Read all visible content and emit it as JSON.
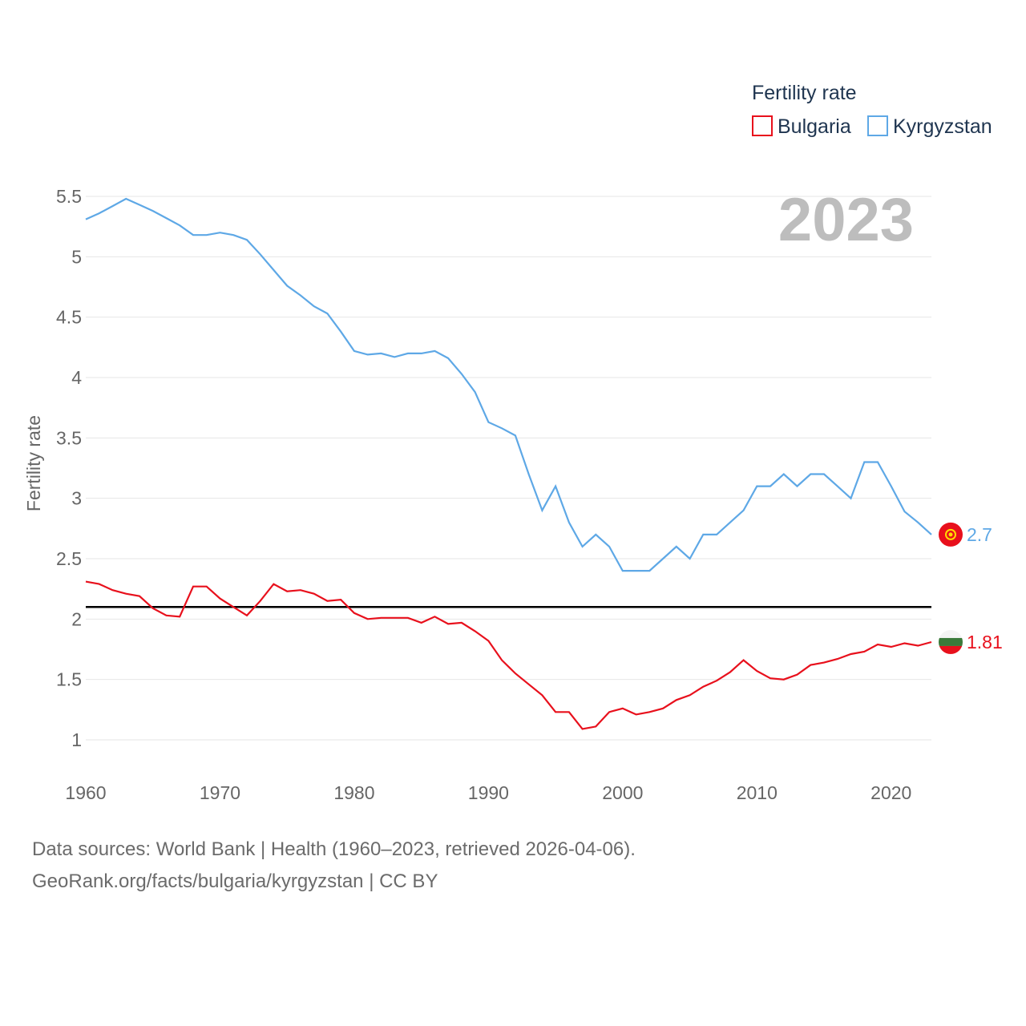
{
  "legend": {
    "title": "Fertility rate",
    "items": [
      {
        "label": "Bulgaria",
        "color": "#e8101c"
      },
      {
        "label": "Kyrgyzstan",
        "color": "#5ea8e6"
      }
    ]
  },
  "watermark_year": "2023",
  "reference_line_value": 2.1,
  "end_labels": {
    "kyrgyzstan": "2.7",
    "bulgaria": "1.81"
  },
  "footer": {
    "line1": "Data sources: World Bank | Health (1960–2023, retrieved 2026-04-06).",
    "line2": "GeoRank.org/facts/bulgaria/kyrgyzstan | CC BY"
  },
  "chart_data": {
    "type": "line",
    "title": "Fertility rate",
    "xlabel": "",
    "ylabel": "Fertility rate",
    "xlim": [
      1960,
      2023
    ],
    "ylim": [
      0.75,
      5.6
    ],
    "x_ticks": [
      "1960",
      "1970",
      "1980",
      "1990",
      "2000",
      "2010",
      "2020"
    ],
    "y_ticks": [
      "1",
      "1.5",
      "2",
      "2.5",
      "3",
      "3.5",
      "4",
      "4.5",
      "5",
      "5.5"
    ],
    "x": [
      1960,
      1961,
      1962,
      1963,
      1964,
      1965,
      1966,
      1967,
      1968,
      1969,
      1970,
      1971,
      1972,
      1973,
      1974,
      1975,
      1976,
      1977,
      1978,
      1979,
      1980,
      1981,
      1982,
      1983,
      1984,
      1985,
      1986,
      1987,
      1988,
      1989,
      1990,
      1991,
      1992,
      1993,
      1994,
      1995,
      1996,
      1997,
      1998,
      1999,
      2000,
      2001,
      2002,
      2003,
      2004,
      2005,
      2006,
      2007,
      2008,
      2009,
      2010,
      2011,
      2012,
      2013,
      2014,
      2015,
      2016,
      2017,
      2018,
      2019,
      2020,
      2021,
      2022,
      2023
    ],
    "series": [
      {
        "name": "Bulgaria",
        "color": "#e8101c",
        "values": [
          2.31,
          2.29,
          2.24,
          2.21,
          2.19,
          2.09,
          2.03,
          2.02,
          2.27,
          2.27,
          2.17,
          2.1,
          2.03,
          2.15,
          2.29,
          2.23,
          2.24,
          2.21,
          2.15,
          2.16,
          2.05,
          2.0,
          2.01,
          2.01,
          2.01,
          1.97,
          2.02,
          1.96,
          1.97,
          1.9,
          1.82,
          1.66,
          1.55,
          1.46,
          1.37,
          1.23,
          1.23,
          1.09,
          1.11,
          1.23,
          1.26,
          1.21,
          1.23,
          1.26,
          1.33,
          1.37,
          1.44,
          1.49,
          1.56,
          1.66,
          1.57,
          1.51,
          1.5,
          1.54,
          1.62,
          1.64,
          1.67,
          1.71,
          1.73,
          1.79,
          1.77,
          1.8,
          1.78,
          1.81
        ]
      },
      {
        "name": "Kyrgyzstan",
        "color": "#5ea8e6",
        "values": [
          5.31,
          5.36,
          5.42,
          5.48,
          5.43,
          5.38,
          5.32,
          5.26,
          5.18,
          5.18,
          5.2,
          5.18,
          5.14,
          5.02,
          4.89,
          4.76,
          4.68,
          4.59,
          4.53,
          4.38,
          4.22,
          4.19,
          4.2,
          4.17,
          4.2,
          4.2,
          4.22,
          4.16,
          4.03,
          3.88,
          3.63,
          3.58,
          3.52,
          3.2,
          2.9,
          3.1,
          2.8,
          2.6,
          2.7,
          2.6,
          2.4,
          2.4,
          2.4,
          2.5,
          2.6,
          2.5,
          2.7,
          2.7,
          2.8,
          2.9,
          3.1,
          3.1,
          3.2,
          3.1,
          3.2,
          3.2,
          3.1,
          3.0,
          3.3,
          3.3,
          3.1,
          2.89,
          2.8,
          2.7
        ]
      }
    ]
  }
}
